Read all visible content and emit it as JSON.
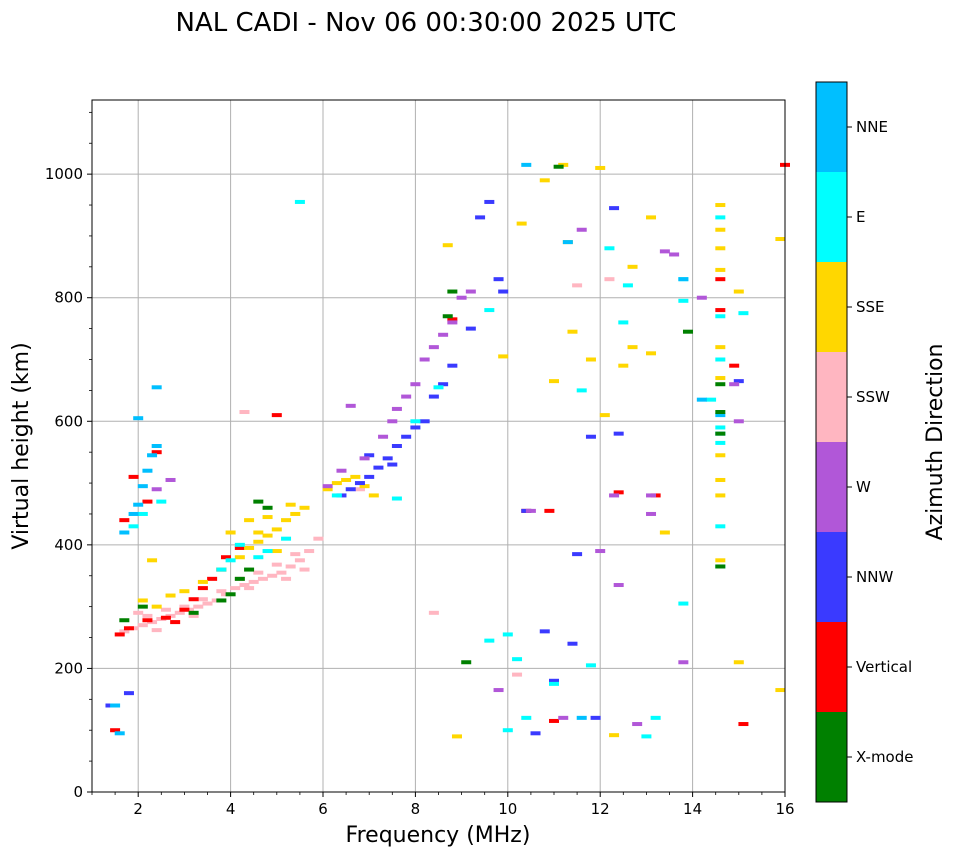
{
  "chart_data": {
    "type": "scatter",
    "title": "NAL CADI - Nov 06 00:30:00 2025 UTC",
    "xlabel": "Frequency (MHz)",
    "ylabel": "Virtual height (km)",
    "xlim": [
      1,
      16
    ],
    "ylim": [
      0,
      1120
    ],
    "xticks": [
      2,
      4,
      6,
      8,
      10,
      12,
      14,
      16
    ],
    "yticks": [
      0,
      200,
      400,
      600,
      800,
      1000
    ],
    "grid": true,
    "colorbar": {
      "label": "Azimuth Direction",
      "position": "right",
      "categories": [
        {
          "name": "X-mode",
          "color": "#008000"
        },
        {
          "name": "Vertical",
          "color": "#ff0000"
        },
        {
          "name": "NNW",
          "color": "#3a3aff"
        },
        {
          "name": "W",
          "color": "#b157d8"
        },
        {
          "name": "SSW",
          "color": "#ffb6c1"
        },
        {
          "name": "SSE",
          "color": "#ffd700"
        },
        {
          "name": "E",
          "color": "#00ffff"
        },
        {
          "name": "NNE",
          "color": "#00bfff"
        }
      ]
    },
    "series": [
      {
        "name": "SSW",
        "points": [
          [
            1.9,
            265
          ],
          [
            2.1,
            270
          ],
          [
            2.3,
            275
          ],
          [
            2.5,
            280
          ],
          [
            2.7,
            285
          ],
          [
            2.9,
            290
          ],
          [
            3.1,
            295
          ],
          [
            3.3,
            300
          ],
          [
            3.5,
            305
          ],
          [
            3.7,
            310
          ],
          [
            3.9,
            320
          ],
          [
            4.1,
            330
          ],
          [
            4.3,
            335
          ],
          [
            4.5,
            340
          ],
          [
            4.7,
            345
          ],
          [
            4.9,
            350
          ],
          [
            5.1,
            355
          ],
          [
            5.3,
            365
          ],
          [
            5.5,
            375
          ],
          [
            5.7,
            390
          ],
          [
            5.9,
            410
          ],
          [
            2.2,
            285
          ],
          [
            2.6,
            295
          ],
          [
            3.0,
            300
          ],
          [
            3.4,
            312
          ],
          [
            3.8,
            325
          ],
          [
            4.2,
            345
          ],
          [
            4.6,
            355
          ],
          [
            5.0,
            368
          ],
          [
            5.4,
            385
          ],
          [
            1.7,
            260
          ],
          [
            2.4,
            262
          ],
          [
            2.0,
            290
          ],
          [
            3.2,
            285
          ],
          [
            4.4,
            330
          ],
          [
            5.2,
            345
          ],
          [
            5.6,
            360
          ],
          [
            8.4,
            290
          ],
          [
            10.2,
            190
          ],
          [
            12.2,
            830
          ],
          [
            11.5,
            820
          ],
          [
            4.3,
            615
          ],
          [
            6.8,
            490
          ]
        ]
      },
      {
        "name": "Vertical",
        "points": [
          [
            1.6,
            255
          ],
          [
            1.8,
            265
          ],
          [
            2.2,
            278
          ],
          [
            2.6,
            282
          ],
          [
            2.8,
            275
          ],
          [
            3.0,
            295
          ],
          [
            3.2,
            312
          ],
          [
            3.4,
            330
          ],
          [
            3.6,
            345
          ],
          [
            3.8,
            360
          ],
          [
            3.9,
            380
          ],
          [
            4.2,
            395
          ],
          [
            1.7,
            440
          ],
          [
            2.2,
            470
          ],
          [
            1.9,
            510
          ],
          [
            2.4,
            550
          ],
          [
            1.5,
            100
          ],
          [
            5.0,
            610
          ],
          [
            8.8,
            765
          ],
          [
            10.4,
            455
          ],
          [
            10.9,
            455
          ],
          [
            14.6,
            830
          ],
          [
            14.6,
            780
          ],
          [
            14.9,
            690
          ],
          [
            15.1,
            110
          ],
          [
            16.0,
            1015
          ],
          [
            12.4,
            485
          ],
          [
            13.2,
            480
          ],
          [
            11.0,
            115
          ]
        ]
      },
      {
        "name": "SSE",
        "points": [
          [
            2.4,
            300
          ],
          [
            2.7,
            318
          ],
          [
            3.0,
            325
          ],
          [
            3.4,
            340
          ],
          [
            3.8,
            360
          ],
          [
            4.2,
            380
          ],
          [
            4.4,
            395
          ],
          [
            4.6,
            405
          ],
          [
            4.8,
            415
          ],
          [
            5.0,
            425
          ],
          [
            5.2,
            440
          ],
          [
            5.4,
            450
          ],
          [
            5.6,
            460
          ],
          [
            6.1,
            490
          ],
          [
            6.3,
            500
          ],
          [
            6.5,
            505
          ],
          [
            6.7,
            510
          ],
          [
            4.4,
            440
          ],
          [
            4.6,
            420
          ],
          [
            5.0,
            390
          ],
          [
            4.0,
            420
          ],
          [
            4.8,
            445
          ],
          [
            5.3,
            465
          ],
          [
            6.9,
            495
          ],
          [
            7.1,
            480
          ],
          [
            2.1,
            310
          ],
          [
            2.3,
            375
          ],
          [
            8.7,
            885
          ],
          [
            8.9,
            90
          ],
          [
            9.9,
            705
          ],
          [
            10.3,
            920
          ],
          [
            10.8,
            990
          ],
          [
            11.3,
            890
          ],
          [
            11.8,
            700
          ],
          [
            12.1,
            610
          ],
          [
            12.3,
            92
          ],
          [
            12.5,
            690
          ],
          [
            12.7,
            850
          ],
          [
            12.7,
            720
          ],
          [
            13.1,
            710
          ],
          [
            13.1,
            930
          ],
          [
            13.4,
            420
          ],
          [
            14.6,
            950
          ],
          [
            14.6,
            910
          ],
          [
            14.6,
            880
          ],
          [
            14.6,
            845
          ],
          [
            14.6,
            720
          ],
          [
            14.6,
            670
          ],
          [
            14.6,
            545
          ],
          [
            14.6,
            505
          ],
          [
            14.6,
            480
          ],
          [
            14.6,
            375
          ],
          [
            15.0,
            210
          ],
          [
            15.0,
            810
          ],
          [
            15.9,
            895
          ],
          [
            15.9,
            165
          ],
          [
            11.2,
            1015
          ],
          [
            12.0,
            1010
          ],
          [
            11.0,
            665
          ],
          [
            11.4,
            745
          ]
        ]
      },
      {
        "name": "NNW",
        "points": [
          [
            6.4,
            480
          ],
          [
            6.6,
            490
          ],
          [
            6.8,
            500
          ],
          [
            7.0,
            510
          ],
          [
            7.2,
            525
          ],
          [
            7.4,
            540
          ],
          [
            7.6,
            560
          ],
          [
            7.8,
            575
          ],
          [
            8.0,
            590
          ],
          [
            8.2,
            600
          ],
          [
            8.4,
            640
          ],
          [
            8.6,
            660
          ],
          [
            8.8,
            690
          ],
          [
            9.2,
            750
          ],
          [
            9.8,
            830
          ],
          [
            9.4,
            930
          ],
          [
            9.9,
            810
          ],
          [
            7.0,
            545
          ],
          [
            7.5,
            530
          ],
          [
            1.4,
            140
          ],
          [
            1.8,
            160
          ],
          [
            10.4,
            455
          ],
          [
            10.6,
            95
          ],
          [
            11.4,
            240
          ],
          [
            11.5,
            385
          ],
          [
            11.8,
            575
          ],
          [
            12.3,
            945
          ],
          [
            12.4,
            580
          ],
          [
            11.0,
            180
          ],
          [
            11.9,
            120
          ],
          [
            15.0,
            665
          ],
          [
            9.6,
            955
          ],
          [
            10.8,
            260
          ]
        ]
      },
      {
        "name": "W",
        "points": [
          [
            6.1,
            495
          ],
          [
            6.4,
            520
          ],
          [
            6.6,
            625
          ],
          [
            6.9,
            540
          ],
          [
            7.3,
            575
          ],
          [
            7.5,
            600
          ],
          [
            7.6,
            620
          ],
          [
            7.8,
            640
          ],
          [
            8.0,
            660
          ],
          [
            8.2,
            700
          ],
          [
            8.4,
            720
          ],
          [
            8.6,
            740
          ],
          [
            8.8,
            760
          ],
          [
            9.0,
            800
          ],
          [
            9.2,
            810
          ],
          [
            2.4,
            490
          ],
          [
            2.7,
            505
          ],
          [
            10.5,
            455
          ],
          [
            11.2,
            120
          ],
          [
            11.6,
            910
          ],
          [
            12.0,
            390
          ],
          [
            12.3,
            480
          ],
          [
            12.4,
            335
          ],
          [
            13.1,
            450
          ],
          [
            13.1,
            480
          ],
          [
            13.4,
            875
          ],
          [
            13.6,
            870
          ],
          [
            13.8,
            210
          ],
          [
            14.2,
            800
          ],
          [
            15.0,
            600
          ],
          [
            14.9,
            660
          ],
          [
            9.8,
            165
          ],
          [
            12.8,
            110
          ]
        ]
      },
      {
        "name": "E",
        "points": [
          [
            1.9,
            430
          ],
          [
            2.1,
            450
          ],
          [
            2.5,
            470
          ],
          [
            3.8,
            360
          ],
          [
            4.0,
            375
          ],
          [
            4.2,
            400
          ],
          [
            4.6,
            380
          ],
          [
            4.8,
            390
          ],
          [
            5.2,
            410
          ],
          [
            5.5,
            955
          ],
          [
            6.3,
            480
          ],
          [
            7.6,
            475
          ],
          [
            8.0,
            600
          ],
          [
            8.5,
            655
          ],
          [
            9.6,
            780
          ],
          [
            9.6,
            245
          ],
          [
            10.0,
            255
          ],
          [
            10.2,
            215
          ],
          [
            10.4,
            120
          ],
          [
            11.0,
            175
          ],
          [
            11.6,
            650
          ],
          [
            11.8,
            205
          ],
          [
            12.2,
            880
          ],
          [
            12.5,
            760
          ],
          [
            12.6,
            820
          ],
          [
            13.2,
            120
          ],
          [
            13.8,
            830
          ],
          [
            13.8,
            795
          ],
          [
            13.8,
            305
          ],
          [
            14.4,
            635
          ],
          [
            14.6,
            930
          ],
          [
            14.6,
            770
          ],
          [
            14.6,
            700
          ],
          [
            14.6,
            590
          ],
          [
            14.6,
            565
          ],
          [
            14.6,
            430
          ],
          [
            14.6,
            365
          ],
          [
            15.1,
            775
          ],
          [
            13.0,
            90
          ],
          [
            10.0,
            100
          ]
        ]
      },
      {
        "name": "NNE",
        "points": [
          [
            1.7,
            420
          ],
          [
            1.9,
            450
          ],
          [
            2.0,
            465
          ],
          [
            2.1,
            495
          ],
          [
            2.2,
            520
          ],
          [
            2.3,
            545
          ],
          [
            2.4,
            560
          ],
          [
            2.4,
            655
          ],
          [
            1.5,
            140
          ],
          [
            1.6,
            95
          ],
          [
            2.0,
            605
          ],
          [
            11.3,
            890
          ],
          [
            11.6,
            120
          ],
          [
            14.2,
            635
          ],
          [
            14.6,
            580
          ],
          [
            14.6,
            610
          ],
          [
            10.4,
            1015
          ],
          [
            13.8,
            830
          ]
        ]
      },
      {
        "name": "X-mode",
        "points": [
          [
            3.2,
            290
          ],
          [
            3.8,
            310
          ],
          [
            4.0,
            320
          ],
          [
            4.2,
            345
          ],
          [
            4.4,
            360
          ],
          [
            4.6,
            470
          ],
          [
            4.8,
            460
          ],
          [
            1.7,
            278
          ],
          [
            2.1,
            300
          ],
          [
            8.7,
            770
          ],
          [
            8.8,
            810
          ],
          [
            9.1,
            210
          ],
          [
            14.6,
            660
          ],
          [
            14.6,
            615
          ],
          [
            14.6,
            580
          ],
          [
            14.6,
            365
          ],
          [
            13.9,
            745
          ],
          [
            11.1,
            1012
          ]
        ]
      }
    ]
  }
}
